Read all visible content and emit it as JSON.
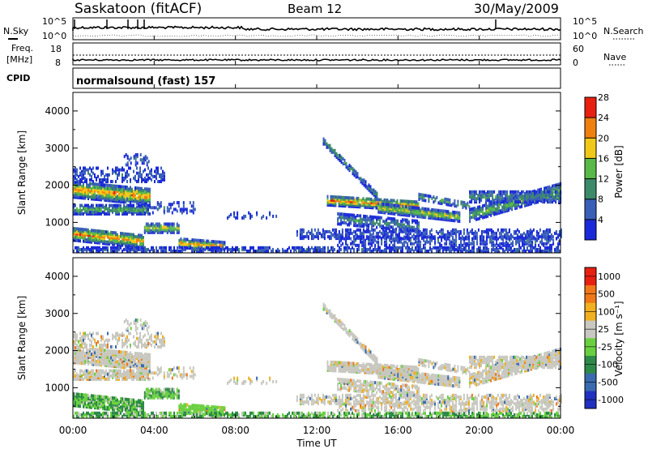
{
  "header": {
    "station": "Saskatoon (fitACF)",
    "beam": "Beam 12",
    "date": "30/May/2009"
  },
  "noise_panel": {
    "left_label": "N.Sky",
    "right_label": "N.Search",
    "left_ticks": [
      "10^5",
      "10^0"
    ],
    "right_ticks": [
      "10^5",
      "10^0"
    ]
  },
  "freq_panel": {
    "left_label_1": "Freq.",
    "left_label_2": "[MHz]",
    "right_label": "Nave",
    "left_ticks": [
      "18",
      "8"
    ],
    "right_ticks": [
      "60",
      "0"
    ]
  },
  "cpid_panel": {
    "label": "CPID",
    "text": "normalsound (fast) 157"
  },
  "chart_data": [
    {
      "type": "heatmap",
      "name": "power",
      "ylabel": "Slant Range [km]",
      "yticks": [
        "1000",
        "2000",
        "3000",
        "4000"
      ],
      "ylim": [
        180,
        4500
      ],
      "colorbar_label": "Power [dB]",
      "colorbar_ticks": [
        "4",
        "8",
        "12",
        "16",
        "20",
        "24",
        "28"
      ],
      "colors": [
        "#1a2ad8",
        "#3a5fb8",
        "#3d8a6a",
        "#58b848",
        "#f0c818",
        "#f08010",
        "#e82010"
      ]
    },
    {
      "type": "heatmap",
      "name": "velocity",
      "ylabel": "Slant Range [km]",
      "yticks": [
        "1000",
        "2000",
        "3000",
        "4000"
      ],
      "ylim": [
        180,
        4500
      ],
      "colorbar_label": "Velocity [m s⁻¹]",
      "colorbar_ticks": [
        "1000",
        "500",
        "100",
        "25",
        "-25",
        "-100",
        "-500",
        "-1000"
      ],
      "colors": [
        "#2030c0",
        "#3a6ab0",
        "#2e8a48",
        "#6ad040",
        "#c8c8c0",
        "#f0b020",
        "#f07818",
        "#e82010"
      ]
    }
  ],
  "xaxis": {
    "label": "Time UT",
    "ticks": [
      "00:00",
      "04:00",
      "08:00",
      "12:00",
      "16:00",
      "20:00",
      "00:00"
    ]
  }
}
